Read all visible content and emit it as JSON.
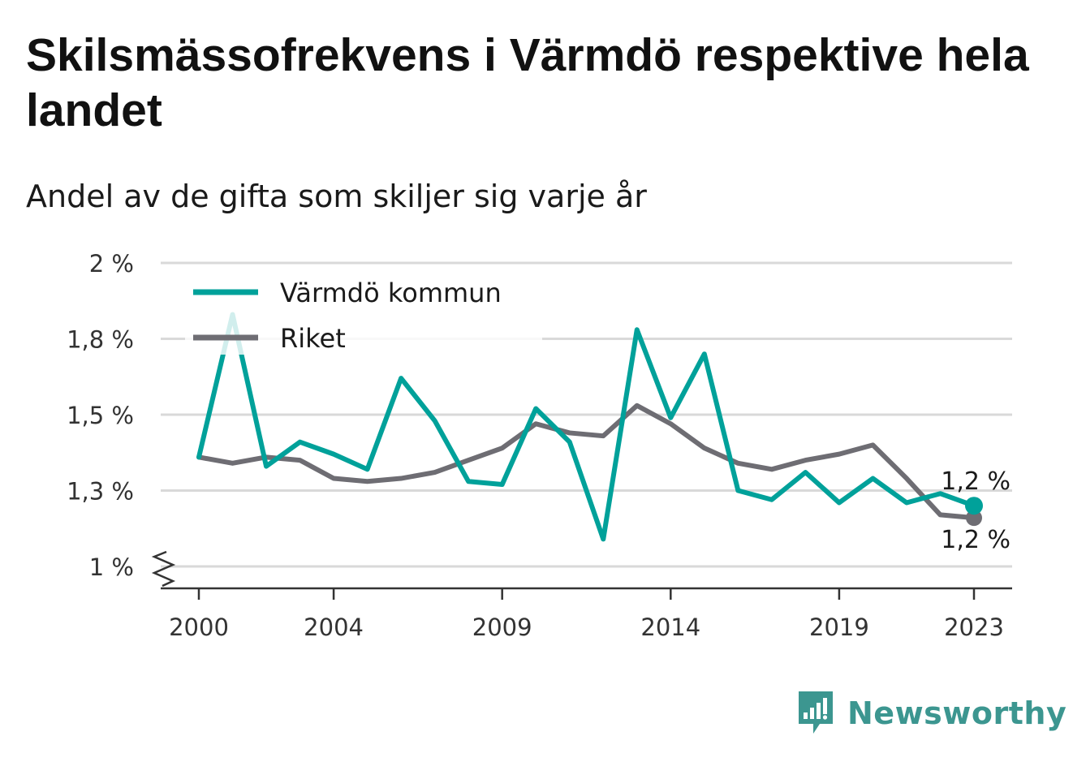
{
  "title": "Skilsmässofrekvens i Värmdö respektive hela landet",
  "subtitle": "Andel av de gifta som skiljer sig varje år",
  "brand": "Newsworthy",
  "colors": {
    "varmdo": "#00a19a",
    "riket": "#6e6d73",
    "grid": "#d9d9d9",
    "axis": "#333333"
  },
  "chart_data": {
    "type": "line",
    "title": "Skilsmässofrekvens i Värmdö respektive hela landet",
    "subtitle": "Andel av de gifta som skiljer sig varje år",
    "xlabel": "",
    "ylabel": "",
    "x": [
      2000,
      2001,
      2002,
      2003,
      2004,
      2005,
      2006,
      2007,
      2008,
      2009,
      2010,
      2011,
      2012,
      2013,
      2014,
      2015,
      2016,
      2017,
      2018,
      2019,
      2020,
      2021,
      2022,
      2023
    ],
    "x_ticks": [
      "2000",
      "2004",
      "2009",
      "2014",
      "2019",
      "2023"
    ],
    "x_tick_values": [
      2000,
      2004,
      2009,
      2014,
      2019,
      2023
    ],
    "y_ticks": [
      "1 %",
      "1,3 %",
      "1,5 %",
      "1,8 %",
      "2 %"
    ],
    "y_tick_values": [
      1.0,
      1.25,
      1.5,
      1.75,
      2.0
    ],
    "ylim": [
      1.0,
      2.0
    ],
    "y_axis_break": true,
    "grid": true,
    "legend_position": "top-left",
    "series": [
      {
        "name": "Värmdö kommun",
        "color": "#00a19a",
        "values": [
          1.36,
          1.83,
          1.33,
          1.41,
          1.37,
          1.32,
          1.62,
          1.48,
          1.28,
          1.27,
          1.52,
          1.41,
          1.09,
          1.78,
          1.49,
          1.7,
          1.25,
          1.22,
          1.31,
          1.21,
          1.29,
          1.21,
          1.24,
          1.2
        ],
        "end_label": "1,2 %"
      },
      {
        "name": "Riket",
        "color": "#6e6d73",
        "values": [
          1.36,
          1.34,
          1.36,
          1.35,
          1.29,
          1.28,
          1.29,
          1.31,
          1.35,
          1.39,
          1.47,
          1.44,
          1.43,
          1.53,
          1.47,
          1.39,
          1.34,
          1.32,
          1.35,
          1.37,
          1.4,
          1.29,
          1.17,
          1.16
        ],
        "end_label": "1,2 %"
      }
    ]
  }
}
